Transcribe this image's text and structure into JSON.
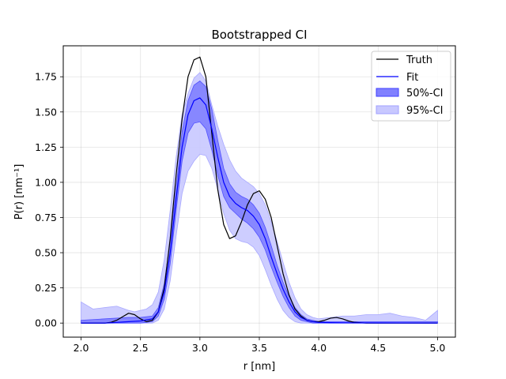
{
  "chart_data": {
    "type": "line",
    "title": "Bootstrapped CI",
    "xlabel": "r [nm]",
    "ylabel": "P(r) [nm⁻¹]",
    "xlim": [
      1.85,
      5.15
    ],
    "ylim": [
      -0.1,
      1.97
    ],
    "xticks": [
      2.0,
      2.5,
      3.0,
      3.5,
      4.0,
      4.5,
      5.0
    ],
    "xtick_labels": [
      "2.0",
      "2.5",
      "3.0",
      "3.5",
      "4.0",
      "4.5",
      "5.0"
    ],
    "yticks": [
      0.0,
      0.25,
      0.5,
      0.75,
      1.0,
      1.25,
      1.5,
      1.75
    ],
    "ytick_labels": [
      "0.00",
      "0.25",
      "0.50",
      "0.75",
      "1.00",
      "1.25",
      "1.50",
      "1.75"
    ],
    "grid": true,
    "legend_position": "top-right",
    "colors": {
      "truth": "#000000",
      "fit": "#0000ff",
      "ci50": "#8080ff",
      "ci95": "#c8c8ff"
    },
    "series": [
      {
        "name": "Truth",
        "kind": "line",
        "x": [
          2.0,
          2.2,
          2.25,
          2.3,
          2.35,
          2.4,
          2.45,
          2.5,
          2.55,
          2.6,
          2.65,
          2.7,
          2.75,
          2.8,
          2.85,
          2.9,
          2.95,
          3.0,
          3.05,
          3.1,
          3.15,
          3.2,
          3.25,
          3.3,
          3.35,
          3.4,
          3.45,
          3.5,
          3.55,
          3.6,
          3.65,
          3.7,
          3.75,
          3.8,
          3.85,
          3.9,
          3.95,
          4.0,
          4.05,
          4.1,
          4.15,
          4.2,
          4.25,
          4.3,
          4.4,
          4.6,
          5.0
        ],
        "y": [
          0.0,
          0.0,
          0.005,
          0.02,
          0.045,
          0.07,
          0.06,
          0.03,
          0.01,
          0.02,
          0.08,
          0.25,
          0.6,
          1.05,
          1.45,
          1.75,
          1.87,
          1.89,
          1.75,
          1.35,
          0.95,
          0.7,
          0.6,
          0.62,
          0.72,
          0.84,
          0.92,
          0.94,
          0.88,
          0.75,
          0.55,
          0.35,
          0.2,
          0.1,
          0.05,
          0.02,
          0.01,
          0.01,
          0.02,
          0.035,
          0.04,
          0.03,
          0.015,
          0.005,
          0.0,
          0.0,
          0.0
        ]
      },
      {
        "name": "Fit",
        "kind": "line",
        "x": [
          2.0,
          2.2,
          2.4,
          2.5,
          2.6,
          2.65,
          2.7,
          2.75,
          2.8,
          2.85,
          2.9,
          2.95,
          3.0,
          3.05,
          3.1,
          3.15,
          3.2,
          3.25,
          3.3,
          3.35,
          3.4,
          3.45,
          3.5,
          3.55,
          3.6,
          3.65,
          3.7,
          3.75,
          3.8,
          3.85,
          3.9,
          3.95,
          4.0,
          4.1,
          4.2,
          4.5,
          5.0
        ],
        "y": [
          0.0,
          0.0,
          0.01,
          0.015,
          0.03,
          0.08,
          0.22,
          0.5,
          0.88,
          1.25,
          1.48,
          1.58,
          1.6,
          1.55,
          1.38,
          1.18,
          1.0,
          0.9,
          0.85,
          0.82,
          0.8,
          0.76,
          0.7,
          0.6,
          0.47,
          0.35,
          0.24,
          0.15,
          0.08,
          0.04,
          0.02,
          0.01,
          0.005,
          0.003,
          0.002,
          0.001,
          0.0
        ]
      },
      {
        "name": "50%-CI",
        "kind": "band",
        "x": [
          2.0,
          2.2,
          2.4,
          2.5,
          2.6,
          2.65,
          2.7,
          2.75,
          2.8,
          2.85,
          2.9,
          2.95,
          3.0,
          3.05,
          3.1,
          3.15,
          3.2,
          3.25,
          3.3,
          3.35,
          3.4,
          3.45,
          3.5,
          3.55,
          3.6,
          3.65,
          3.7,
          3.75,
          3.8,
          3.85,
          3.9,
          3.95,
          4.0,
          4.1,
          4.2,
          4.5,
          5.0
        ],
        "lower": [
          0.0,
          0.0,
          0.0,
          0.0,
          0.01,
          0.05,
          0.17,
          0.42,
          0.8,
          1.15,
          1.35,
          1.42,
          1.43,
          1.38,
          1.23,
          1.05,
          0.9,
          0.82,
          0.78,
          0.74,
          0.71,
          0.67,
          0.61,
          0.52,
          0.4,
          0.29,
          0.19,
          0.11,
          0.05,
          0.02,
          0.01,
          0.0,
          0.0,
          0.0,
          0.0,
          0.0,
          0.0
        ],
        "upper": [
          0.02,
          0.03,
          0.04,
          0.04,
          0.05,
          0.11,
          0.28,
          0.58,
          0.96,
          1.36,
          1.58,
          1.69,
          1.72,
          1.68,
          1.52,
          1.3,
          1.1,
          0.99,
          0.93,
          0.9,
          0.88,
          0.84,
          0.78,
          0.68,
          0.55,
          0.41,
          0.29,
          0.19,
          0.11,
          0.06,
          0.03,
          0.02,
          0.01,
          0.01,
          0.01,
          0.01,
          0.01
        ]
      },
      {
        "name": "95%-CI",
        "kind": "band",
        "x": [
          2.0,
          2.1,
          2.2,
          2.3,
          2.4,
          2.45,
          2.5,
          2.55,
          2.6,
          2.65,
          2.7,
          2.75,
          2.8,
          2.85,
          2.9,
          2.95,
          3.0,
          3.05,
          3.1,
          3.15,
          3.2,
          3.25,
          3.3,
          3.35,
          3.4,
          3.45,
          3.5,
          3.55,
          3.6,
          3.65,
          3.7,
          3.75,
          3.8,
          3.85,
          3.9,
          3.95,
          4.0,
          4.1,
          4.2,
          4.3,
          4.4,
          4.5,
          4.6,
          4.7,
          4.8,
          4.9,
          5.0
        ],
        "lower": [
          0.0,
          0.0,
          0.0,
          0.0,
          0.0,
          0.0,
          0.0,
          0.0,
          0.0,
          0.02,
          0.1,
          0.3,
          0.62,
          0.92,
          1.08,
          1.15,
          1.2,
          1.19,
          1.1,
          0.95,
          0.78,
          0.66,
          0.6,
          0.58,
          0.57,
          0.54,
          0.48,
          0.38,
          0.27,
          0.17,
          0.09,
          0.04,
          0.01,
          0.0,
          0.0,
          0.0,
          0.0,
          0.0,
          0.0,
          0.0,
          0.0,
          0.0,
          0.0,
          0.0,
          0.0,
          0.0,
          0.0
        ],
        "upper": [
          0.15,
          0.1,
          0.11,
          0.12,
          0.09,
          0.08,
          0.09,
          0.1,
          0.13,
          0.22,
          0.45,
          0.8,
          1.18,
          1.48,
          1.63,
          1.74,
          1.78,
          1.72,
          1.55,
          1.4,
          1.27,
          1.16,
          1.08,
          1.03,
          1.0,
          0.97,
          0.92,
          0.84,
          0.72,
          0.58,
          0.43,
          0.29,
          0.18,
          0.1,
          0.06,
          0.04,
          0.03,
          0.04,
          0.05,
          0.05,
          0.06,
          0.06,
          0.07,
          0.05,
          0.04,
          0.02,
          0.09
        ]
      }
    ]
  }
}
